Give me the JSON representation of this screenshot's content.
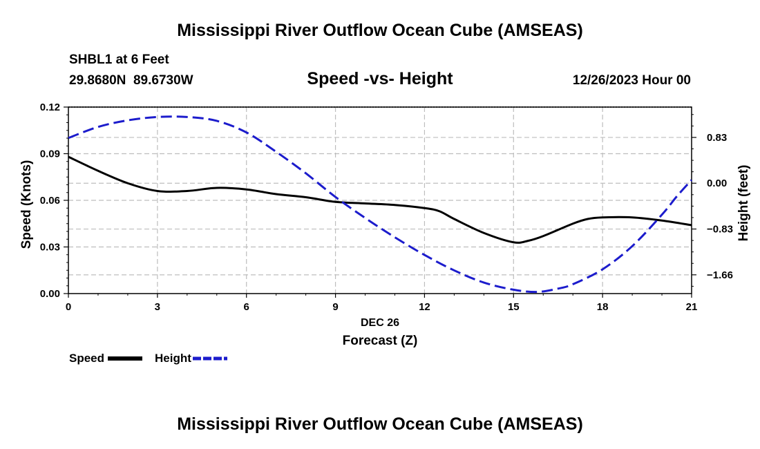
{
  "page": {
    "title_top": "Mississippi River Outflow Ocean Cube (AMSEAS)",
    "title_bottom": "Mississippi River Outflow Ocean Cube (AMSEAS)",
    "station_line": "SHBL1 at 6 Feet",
    "coords_line": "29.8680N  89.6730W",
    "subtitle": "Speed -vs- Height",
    "date_line": "12/26/2023 Hour 00",
    "x_category": "DEC 26",
    "x_label": "Forecast (Z)",
    "legend": {
      "speed": "Speed",
      "height": "Height"
    }
  },
  "chart_data": {
    "type": "line",
    "title": "Speed -vs- Height",
    "xlabel": "Forecast (Z)",
    "x_range": [
      0,
      21
    ],
    "x_ticks": [
      0,
      3,
      6,
      9,
      12,
      15,
      18,
      21
    ],
    "y_left": {
      "label": "Speed (Knots)",
      "range": [
        0,
        0.12
      ],
      "ticks": [
        0.0,
        0.03,
        0.06,
        0.09,
        0.12
      ],
      "tick_labels": [
        "0.00",
        "0.03",
        "0.06",
        "0.09",
        "0.12"
      ]
    },
    "y_right": {
      "label": "Height (feet)",
      "range": [
        -2.0,
        1.38
      ],
      "ticks": [
        -1.66,
        -0.83,
        0.0,
        0.83
      ],
      "tick_labels": [
        "−1.66",
        "−0.83",
        "0.00",
        "0.83"
      ]
    },
    "grid": true,
    "series": [
      {
        "name": "Speed",
        "axis": "left",
        "style": "solid",
        "color": "#000000",
        "x": [
          0,
          1,
          2,
          3,
          4,
          5,
          6,
          7,
          8,
          9,
          10,
          11,
          12,
          12.5,
          13,
          14,
          15,
          15.5,
          16,
          17,
          17.5,
          18,
          19,
          20,
          21
        ],
        "y": [
          0.088,
          0.079,
          0.071,
          0.066,
          0.066,
          0.068,
          0.067,
          0.064,
          0.062,
          0.059,
          0.058,
          0.057,
          0.055,
          0.053,
          0.048,
          0.039,
          0.033,
          0.034,
          0.037,
          0.045,
          0.048,
          0.049,
          0.049,
          0.047,
          0.044
        ]
      },
      {
        "name": "Height",
        "axis": "right",
        "style": "dashed",
        "color": "#1c1ccc",
        "x": [
          0,
          1,
          2,
          3,
          4,
          5,
          6,
          7,
          8,
          9,
          10,
          11,
          12,
          13,
          14,
          15,
          15.8,
          16.5,
          17,
          18,
          19,
          20,
          20.5,
          21
        ],
        "y": [
          0.82,
          1.02,
          1.14,
          1.2,
          1.2,
          1.13,
          0.92,
          0.57,
          0.18,
          -0.25,
          -0.63,
          -0.98,
          -1.3,
          -1.58,
          -1.8,
          -1.93,
          -1.97,
          -1.91,
          -1.83,
          -1.56,
          -1.14,
          -0.57,
          -0.24,
          0.06
        ]
      }
    ]
  }
}
